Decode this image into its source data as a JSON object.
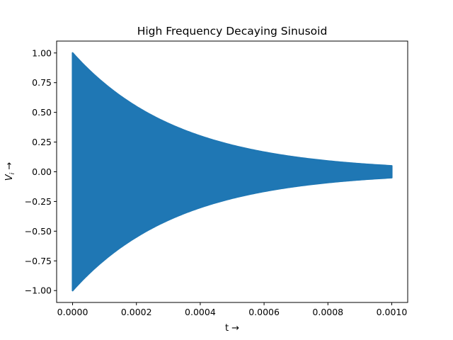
{
  "chart_data": {
    "type": "line",
    "title": "High Frequency Decaying Sinusoid",
    "xlabel": "t →",
    "ylabel_main": "V",
    "ylabel_sub": "i",
    "ylabel_arrow": " →",
    "xlim": [
      -5e-05,
      0.00105
    ],
    "ylim": [
      -1.1,
      1.1
    ],
    "xticks": [
      0.0,
      0.0002,
      0.0004,
      0.0006,
      0.0008,
      0.001
    ],
    "xtick_labels": [
      "0.0000",
      "0.0002",
      "0.0004",
      "0.0006",
      "0.0008",
      "0.0010"
    ],
    "yticks": [
      1.0,
      0.75,
      0.5,
      0.25,
      0.0,
      -0.25,
      -0.5,
      -0.75,
      -1.0
    ],
    "ytick_labels": [
      "1.00",
      "0.75",
      "0.50",
      "0.25",
      "0.00",
      "−0.25",
      "−0.50",
      "−0.75",
      "−1.00"
    ],
    "series": [
      {
        "color": "#1f77b4",
        "amplitude": 1.0,
        "decay_time_constant": 0.000333,
        "t_start": 0.0,
        "t_end": 0.001,
        "envelope_x": [
          0.0,
          0.0001,
          0.0002,
          0.0003,
          0.0004,
          0.0005,
          0.0006,
          0.0007,
          0.0008,
          0.0009,
          0.001
        ],
        "envelope_y": [
          1.0,
          0.74,
          0.55,
          0.41,
          0.3,
          0.22,
          0.165,
          0.12,
          0.09,
          0.067,
          0.05
        ]
      }
    ],
    "grid": false,
    "legend": "none"
  }
}
